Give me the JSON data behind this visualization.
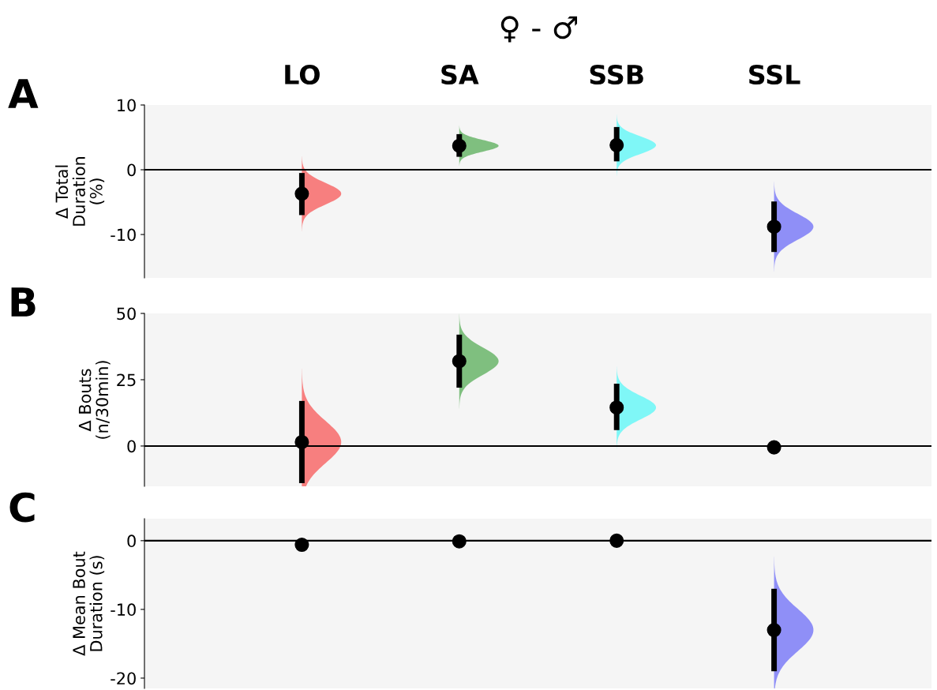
{
  "chart_data": [
    {
      "type": "scatter",
      "title": "A",
      "annotations": [
        "♀ - ♂"
      ],
      "ylabel": "Δ Total\nDuration\n(%)",
      "categories": [
        "LO",
        "SA",
        "SSB",
        "SSL"
      ],
      "ylim": [
        -16.7,
        10
      ],
      "yticks": [
        -10,
        0,
        10
      ],
      "grid": false,
      "marker": "circle",
      "series": [
        {
          "color": "#000000",
          "values": [
            -3.7,
            3.7,
            3.8,
            -8.8
          ],
          "errors": [
            [
              -7,
              -0.5
            ],
            [
              2,
              5.5
            ],
            [
              1.3,
              6.6
            ],
            [
              -12.7,
              -4.9
            ]
          ]
        }
      ],
      "ref_lines": [
        {
          "axis": "y",
          "value": 0,
          "color": "#000000"
        }
      ]
    },
    {
      "type": "scatter",
      "title": "B",
      "ylabel": "Δ Bouts\n(n/30min)",
      "categories": [
        null,
        null,
        null,
        null
      ],
      "ylim": [
        -15.2,
        50
      ],
      "yticks": [
        0,
        25,
        50
      ],
      "grid": false,
      "marker": "circle",
      "tick_labels": "y",
      "series": [
        {
          "color": "#000000",
          "values": [
            1.5,
            32,
            14.5,
            -0.5
          ],
          "errors": [
            [
              -14,
              17
            ],
            [
              22,
              42
            ],
            [
              6,
              23.5
            ],
            null
          ]
        }
      ],
      "ref_lines": [
        {
          "axis": "y",
          "value": 0,
          "color": "#000000"
        }
      ]
    },
    {
      "type": "scatter",
      "title": "C",
      "ylabel": "Δ Mean Bout\nDuration (s)",
      "categories": [
        null,
        null,
        null,
        null
      ],
      "ylim": [
        -21.5,
        3.2
      ],
      "yticks": [
        -20,
        -10,
        0
      ],
      "grid": false,
      "marker": "circle",
      "tick_labels": "y",
      "series": [
        {
          "color": "#000000",
          "values": [
            -0.6,
            -0.1,
            0,
            -13
          ],
          "errors": [
            null,
            null,
            null,
            [
              -19,
              -7
            ]
          ]
        }
      ],
      "ref_lines": [
        {
          "axis": "y",
          "value": 0,
          "color": "#000000"
        }
      ]
    }
  ]
}
